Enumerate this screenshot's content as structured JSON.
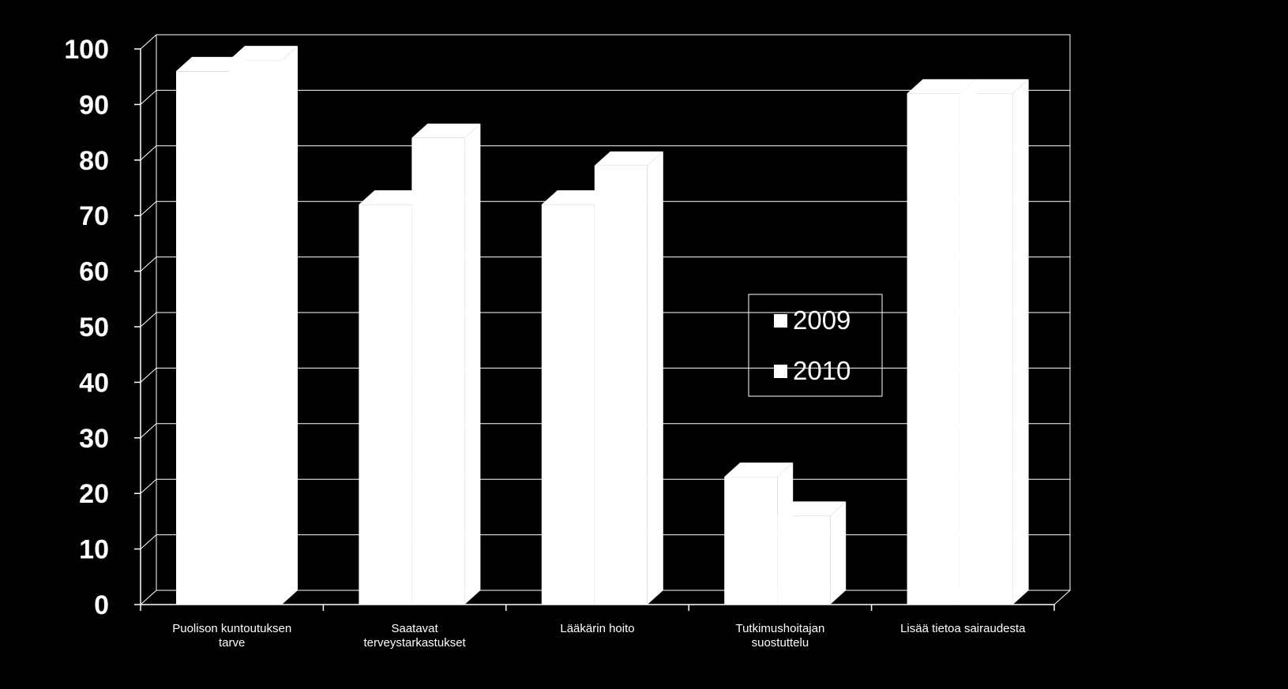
{
  "chart_data": {
    "type": "bar",
    "style": "3d-clustered-column",
    "background": "#000000",
    "bar_color": "#ffffff",
    "grid": true,
    "ylim": [
      0,
      100
    ],
    "yticks": [
      "0",
      "10",
      "20",
      "30",
      "40",
      "50",
      "60",
      "70",
      "80",
      "90",
      "100"
    ],
    "categories": [
      [
        "Puolison kuntoutuksen",
        "tarve"
      ],
      [
        "Saatavat",
        "terveystarkastukset"
      ],
      [
        "Lääkärin hoito"
      ],
      [
        "Tutkimushoitajan",
        "suostuttelu"
      ],
      [
        "Lisää tietoa sairaudesta"
      ]
    ],
    "series": [
      {
        "name": "2009",
        "color": "#ffffff",
        "values": [
          96,
          72,
          72,
          23,
          92
        ]
      },
      {
        "name": "2010",
        "color": "#ffffff",
        "values": [
          98,
          84,
          79,
          16,
          92
        ]
      }
    ],
    "legend": {
      "position": "center-right",
      "entries": [
        "2009",
        "2010"
      ]
    }
  }
}
